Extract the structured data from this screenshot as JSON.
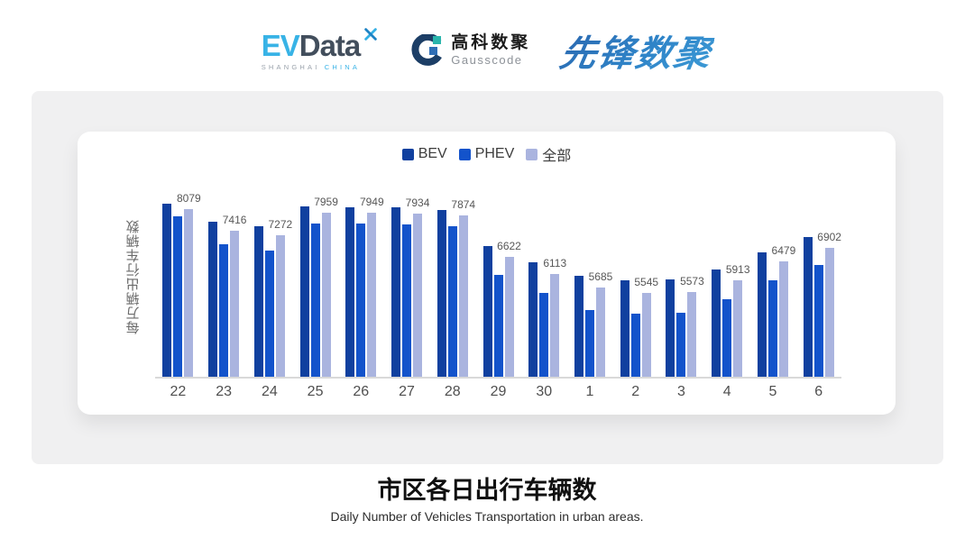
{
  "header": {
    "evdata": {
      "ev": "EV",
      "data": "Data",
      "sub_left": "SHANGHAI",
      "sub_right": "CHINA"
    },
    "gausscode": {
      "cn": "高科数聚",
      "en": "Gausscode"
    },
    "xianfeng": {
      "text": "先锋数聚"
    }
  },
  "chart_data": {
    "type": "bar",
    "title": "市区各日出行车辆数",
    "subtitle": "Daily Number of Vehicles Transportation in urban areas.",
    "ylabel": "每万辆出行车辆数",
    "xlabel": "",
    "categories": [
      "22",
      "23",
      "24",
      "25",
      "26",
      "27",
      "28",
      "29",
      "30",
      "1",
      "2",
      "3",
      "4",
      "5",
      "6"
    ],
    "series": [
      {
        "name": "BEV",
        "key": "bev",
        "color": "#10409f",
        "values": [
          8240,
          7680,
          7550,
          8160,
          8130,
          8120,
          8050,
          6940,
          6450,
          6060,
          5910,
          5950,
          6250,
          6770,
          7220
        ],
        "values_estimated_from_bar_heights": true
      },
      {
        "name": "PHEV",
        "key": "phev",
        "color": "#1353cb",
        "values": [
          7860,
          7000,
          6800,
          7640,
          7630,
          7590,
          7550,
          6090,
          5520,
          5020,
          4920,
          4940,
          5340,
          5910,
          6370
        ],
        "values_estimated_from_bar_heights": true
      },
      {
        "name": "全部",
        "key": "all",
        "color": "#aab4df",
        "values": [
          8079,
          7416,
          7272,
          7959,
          7949,
          7934,
          7874,
          6622,
          6113,
          5685,
          5545,
          5573,
          5913,
          6479,
          6902
        ],
        "labeled": true
      }
    ],
    "ylim": [
      3000,
      8500
    ],
    "grid": false,
    "legend_position": "top",
    "value_labels": "shown above 全部 bars"
  },
  "footer": {
    "title": "市区各日出行车辆数",
    "subtitle": "Daily Number of Vehicles Transportation in urban areas."
  },
  "colors": {
    "panel_bg": "#f0f0f1",
    "card_bg": "#ffffff",
    "axis_line": "#d9d9d9",
    "tick_text": "#4f4f4f",
    "value_label_text": "#575757",
    "legend_text": "#3d3d3d",
    "evdata_blue": "#38b3e6",
    "evdata_dark": "#424e5c",
    "gausscode_navy": "#1c3e66",
    "gausscode_teal": "#2ab5ac",
    "gausscode_blue": "#2f6eb5",
    "xianfeng_blue": "#2e7cc3"
  }
}
